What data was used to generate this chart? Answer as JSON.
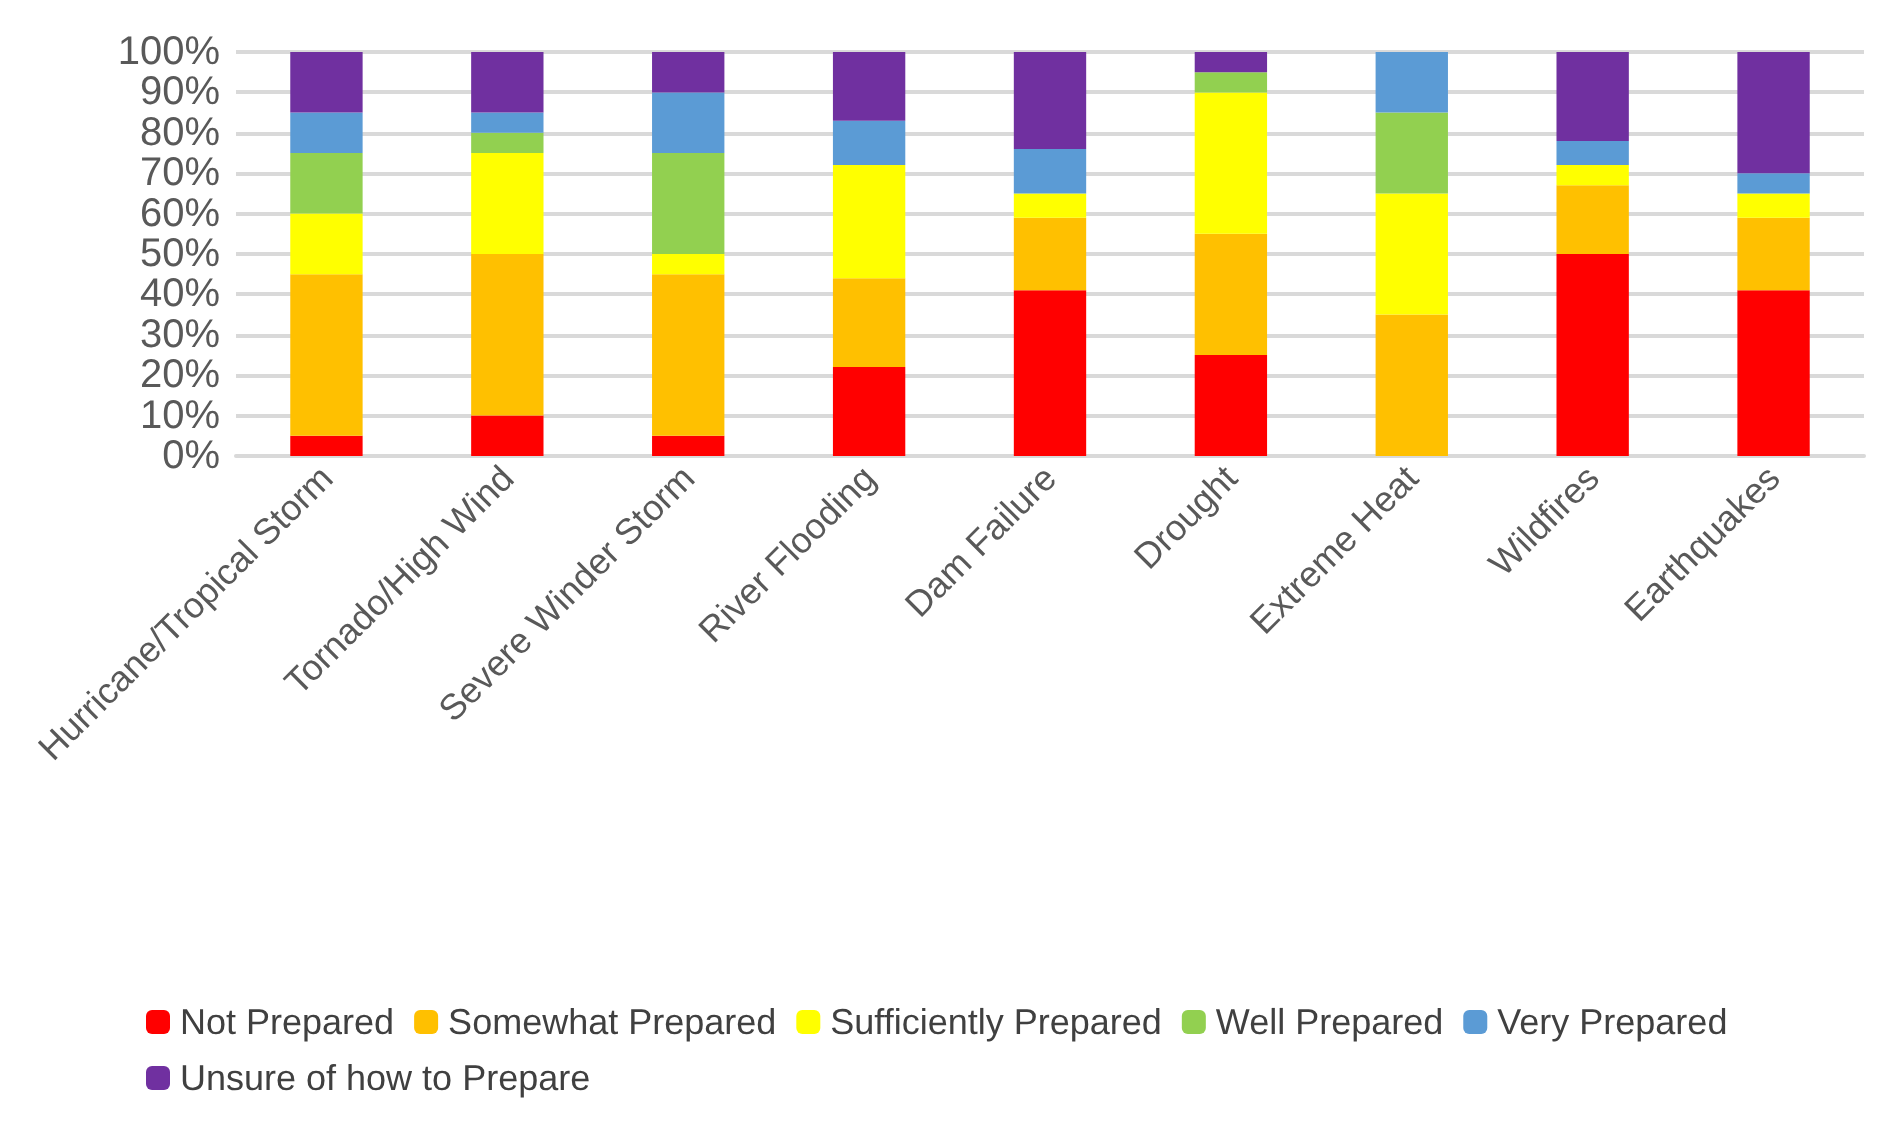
{
  "chart_data": {
    "type": "bar",
    "stacked": true,
    "categories": [
      "Hurricane/Tropical Storm",
      "Tornado/High Wind",
      "Severe Winder Storm",
      "River Flooding",
      "Dam Failure",
      "Drought",
      "Extreme Heat",
      "Wildfires",
      "Earthquakes"
    ],
    "series": [
      {
        "name": "Not Prepared",
        "color": "#ff0000",
        "values": [
          5,
          10,
          5,
          22,
          41,
          25,
          0,
          50,
          41
        ]
      },
      {
        "name": "Somewhat Prepared",
        "color": "#ffc000",
        "values": [
          40,
          40,
          40,
          22,
          18,
          30,
          35,
          17,
          18
        ]
      },
      {
        "name": "Sufficiently Prepared",
        "color": "#ffff00",
        "values": [
          15,
          25,
          5,
          28,
          6,
          35,
          30,
          5,
          6
        ]
      },
      {
        "name": "Well Prepared",
        "color": "#92d050",
        "values": [
          15,
          5,
          25,
          0,
          0,
          5,
          20,
          0,
          0
        ]
      },
      {
        "name": "Very Prepared",
        "color": "#5b9bd5",
        "values": [
          10,
          5,
          15,
          11,
          11,
          0,
          15,
          6,
          5
        ]
      },
      {
        "name": "Unsure of how to Prepare",
        "color": "#7030a0",
        "values": [
          15,
          15,
          10,
          17,
          24,
          5,
          0,
          22,
          30
        ]
      }
    ],
    "ylim": [
      0,
      100
    ],
    "yticks": [
      {
        "value": 0,
        "label": "0%"
      },
      {
        "value": 10,
        "label": "10%"
      },
      {
        "value": 20,
        "label": "20%"
      },
      {
        "value": 30,
        "label": "30%"
      },
      {
        "value": 40,
        "label": "40%"
      },
      {
        "value": 50,
        "label": "50%"
      },
      {
        "value": 60,
        "label": "60%"
      },
      {
        "value": 70,
        "label": "70%"
      },
      {
        "value": 80,
        "label": "80%"
      },
      {
        "value": 90,
        "label": "90%"
      },
      {
        "value": 100,
        "label": "100%"
      }
    ],
    "grid": "y",
    "legend": "bottom"
  }
}
